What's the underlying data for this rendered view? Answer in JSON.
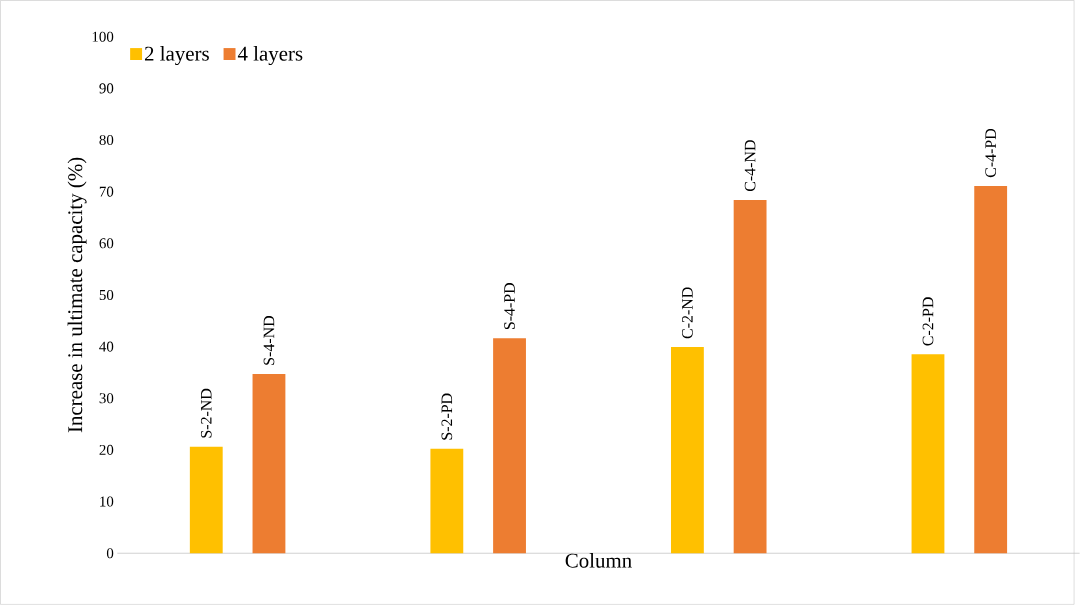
{
  "chart_data": {
    "type": "bar",
    "xlabel": "Column",
    "ylabel": "Increase in ultimate capacity (%)",
    "categories": [
      null,
      null,
      null,
      null
    ],
    "series": [
      {
        "name": "2 layers",
        "color": "#ffc000",
        "values": [
          20.6,
          20.2,
          39.9,
          38.5
        ]
      },
      {
        "name": "4 layers",
        "color": "#ed7d31",
        "values": [
          34.7,
          41.6,
          68.4,
          71.1
        ]
      }
    ],
    "ylim": [
      0,
      100
    ],
    "yticks": [
      0,
      10,
      20,
      30,
      40,
      50,
      60,
      70,
      80,
      90,
      100
    ],
    "legend": "top left",
    "annotations": [
      {
        "text": "S-2-ND",
        "y": 20.6
      },
      {
        "text": "S-4-ND",
        "y": 34.7
      },
      {
        "text": "S-2-PD",
        "y": 20.2
      },
      {
        "text": "S-4-PD",
        "y": 41.6
      },
      {
        "text": "C-2-ND",
        "y": 39.9
      },
      {
        "text": "C-4-ND",
        "y": 68.4
      },
      {
        "text": "C-2-PD",
        "y": 38.5
      },
      {
        "text": "C-4-PD",
        "y": 71.1
      }
    ]
  }
}
